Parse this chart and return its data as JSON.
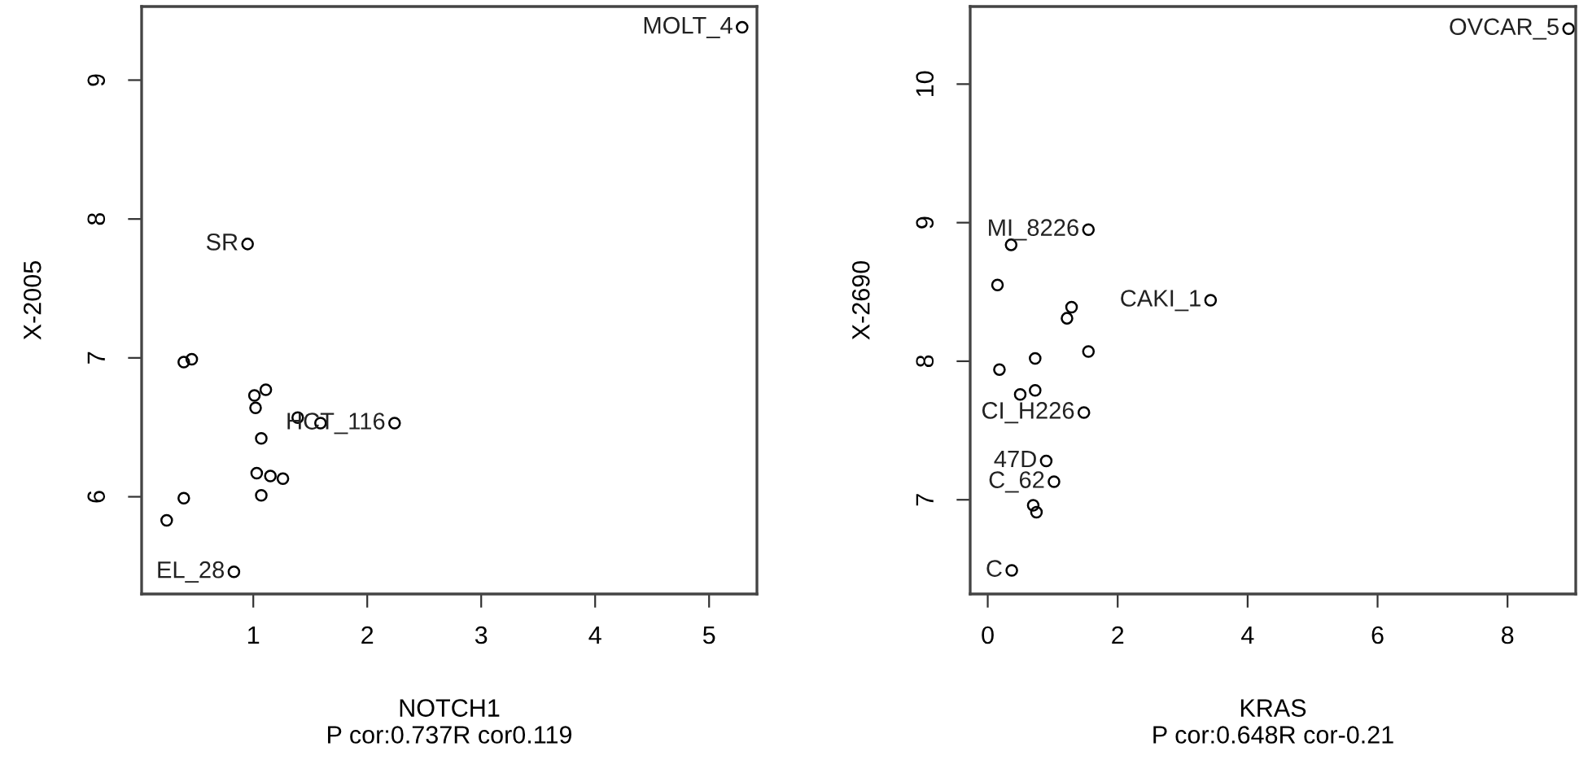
{
  "chart_data": [
    {
      "type": "scatter",
      "xlabel": "NOTCH1\nP cor:0.737R cor0.119",
      "ylabel": "X-2005",
      "xlim": [
        0.02,
        5.42
      ],
      "ylim": [
        5.3,
        9.53
      ],
      "xticks": [
        1,
        2,
        3,
        4,
        5
      ],
      "yticks": [
        6,
        7,
        8,
        9
      ],
      "grid": false,
      "legend": false,
      "marker": "circle",
      "series": [
        {
          "color": "#000000",
          "x": [
            5.29,
            0.95,
            2.24,
            0.83,
            0.39,
            0.46,
            1.11,
            1.01,
            1.02,
            1.59,
            1.39,
            1.07,
            1.15,
            1.26,
            1.03,
            1.07,
            0.39,
            0.24
          ],
          "values": [
            9.38,
            7.82,
            6.53,
            5.46,
            6.97,
            6.99,
            6.77,
            6.73,
            6.64,
            6.53,
            6.57,
            6.42,
            6.15,
            6.13,
            6.17,
            6.01,
            5.99,
            5.83
          ]
        }
      ],
      "annotations": [
        {
          "text": "MOLT_4",
          "x": 5.29,
          "y": 9.38
        },
        {
          "text": "SR",
          "x": 0.95,
          "y": 7.82
        },
        {
          "text": "HCT_116",
          "x": 2.24,
          "y": 6.53
        },
        {
          "text": "EL_28",
          "x": 0.83,
          "y": 5.46
        }
      ]
    },
    {
      "type": "scatter",
      "xlabel": "KRAS\nP cor:0.648R cor-0.21",
      "ylabel": "X-2690",
      "xlim": [
        -0.27,
        9.05
      ],
      "ylim": [
        6.32,
        10.56
      ],
      "xticks": [
        0,
        2,
        4,
        6,
        8
      ],
      "yticks": [
        7,
        8,
        9,
        10
      ],
      "grid": false,
      "legend": false,
      "marker": "circle",
      "series": [
        {
          "color": "#000000",
          "x": [
            8.94,
            3.43,
            1.55,
            0.36,
            0.15,
            1.29,
            1.22,
            1.55,
            0.73,
            0.18,
            0.73,
            0.5,
            1.48,
            0.9,
            1.02,
            0.7,
            0.75,
            0.37
          ],
          "values": [
            10.4,
            8.44,
            8.95,
            8.84,
            8.55,
            8.39,
            8.31,
            8.07,
            8.02,
            7.94,
            7.79,
            7.76,
            7.63,
            7.28,
            7.13,
            6.96,
            6.91,
            6.49
          ]
        }
      ],
      "annotations": [
        {
          "text": "OVCAR_5",
          "x": 8.94,
          "y": 10.4
        },
        {
          "text": "CAKI_1",
          "x": 3.43,
          "y": 8.44
        },
        {
          "text": "MI_8226",
          "x": 1.55,
          "y": 8.95
        },
        {
          "text": "CI_H226",
          "x": 1.48,
          "y": 7.63
        },
        {
          "text": "47D",
          "x": 0.9,
          "y": 7.28
        },
        {
          "text": "C_62",
          "x": 1.02,
          "y": 7.13
        },
        {
          "text": "C",
          "x": 0.37,
          "y": 6.49
        }
      ]
    }
  ]
}
